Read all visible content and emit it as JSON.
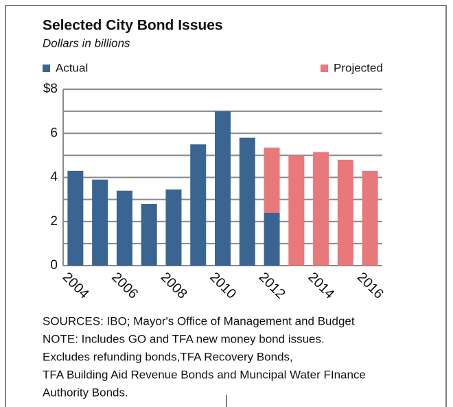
{
  "chart_data": {
    "type": "bar",
    "stacked": true,
    "title": "Selected City Bond Issues",
    "subtitle": "Dollars in billions",
    "categories": [
      "2004",
      null,
      "2006",
      null,
      "2008",
      null,
      "2010",
      null,
      "2012",
      null,
      "2014",
      null,
      "2016"
    ],
    "series": [
      {
        "name": "Actual",
        "color": "#3a6593",
        "values": [
          4.3,
          3.9,
          3.4,
          2.8,
          3.45,
          5.5,
          7.0,
          5.8,
          2.4,
          null,
          null,
          null,
          null
        ]
      },
      {
        "name": "Projected",
        "color": "#e8787a",
        "values": [
          null,
          null,
          null,
          null,
          null,
          null,
          null,
          null,
          2.95,
          5.0,
          5.15,
          4.8,
          4.3
        ]
      }
    ],
    "ylim": [
      0,
      8
    ],
    "yticks": [
      0,
      2,
      4,
      6,
      {
        "value": 8,
        "label": "$8"
      }
    ],
    "minor_yticks": [
      1,
      3,
      5,
      7
    ],
    "grid": true,
    "notes": [
      "SOURCES: IBO; Mayor's Office of Management and Budget",
      "NOTE: Includes GO and TFA new money bond issues.",
      "Excludes refunding bonds,TFA Recovery Bonds,",
      "TFA Building Aid Revenue Bonds and Muncipal Water FInance",
      "Authority Bonds."
    ]
  }
}
